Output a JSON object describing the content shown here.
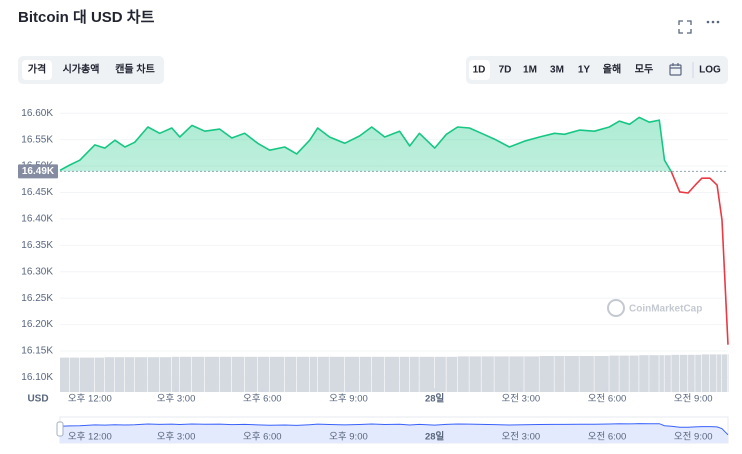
{
  "chart_data": {
    "type": "line",
    "title": "Bitcoin 대 USD 차트",
    "tabs": [
      "가격",
      "시가총액",
      "캔들 차트"
    ],
    "ranges": [
      "1D",
      "7D",
      "1M",
      "3M",
      "1Y",
      "올해",
      "모두"
    ],
    "log_button": "LOG",
    "currency": "USD",
    "watermark": "CoinMarketCap",
    "x": [
      10.96,
      11.3,
      11.65,
      12.17,
      12.52,
      12.87,
      13.22,
      13.56,
      14.02,
      14.43,
      14.85,
      15.13,
      15.55,
      16.0,
      16.52,
      16.94,
      17.39,
      17.84,
      18.26,
      18.78,
      19.2,
      19.65,
      19.93,
      20.34,
      20.87,
      21.39,
      21.81,
      22.26,
      22.78,
      23.13,
      23.47,
      24.0,
      24.41,
      24.8,
      25.21,
      25.63,
      26.08,
      26.6,
      27.12,
      27.65,
      28.17,
      28.52,
      29.04,
      29.56,
      30.08,
      30.43,
      30.78,
      31.12,
      31.47,
      31.82,
      32.0,
      32.24,
      32.53,
      32.82,
      33.07,
      33.3,
      33.58,
      33.83,
      34.0,
      34.21
    ],
    "values": [
      16492,
      16502,
      16511,
      16540,
      16534,
      16549,
      16536,
      16545,
      16574,
      16562,
      16572,
      16555,
      16577,
      16566,
      16570,
      16553,
      16562,
      16543,
      16530,
      16536,
      16523,
      16549,
      16572,
      16555,
      16543,
      16557,
      16574,
      16555,
      16566,
      16538,
      16562,
      16534,
      16560,
      16574,
      16572,
      16562,
      16551,
      16536,
      16547,
      16555,
      16562,
      16560,
      16568,
      16566,
      16574,
      16585,
      16579,
      16592,
      16583,
      16587,
      16511,
      16489,
      16451,
      16449,
      16464,
      16477,
      16477,
      16464,
      16398,
      16162
    ],
    "volume": [
      86,
      86,
      86,
      86,
      87,
      87,
      87,
      87,
      87,
      87,
      88,
      88,
      88,
      88,
      88,
      88,
      88,
      88,
      88,
      88,
      88,
      88,
      88,
      88,
      88,
      88,
      88,
      88,
      88,
      88,
      88,
      88,
      88,
      89,
      89,
      89,
      89,
      89,
      89,
      90,
      90,
      90,
      90,
      90,
      91,
      91,
      91,
      92,
      92,
      92,
      92,
      93,
      93,
      93,
      93,
      94,
      94,
      94,
      94,
      95
    ],
    "volume_lim": [
      0,
      100
    ],
    "up_color": "#16c784",
    "down_color": "#ea3943",
    "baseline": {
      "value": 16490,
      "label": "16.49K"
    },
    "xlim": [
      10.96,
      34.21
    ],
    "xticks": [
      {
        "value": 12,
        "label": "오후 12:00"
      },
      {
        "value": 15,
        "label": "오후 3:00"
      },
      {
        "value": 18,
        "label": "오후 6:00"
      },
      {
        "value": 21,
        "label": "오후 9:00"
      },
      {
        "value": 24,
        "label": "28일"
      },
      {
        "value": 27,
        "label": "오전 3:00"
      },
      {
        "value": 30,
        "label": "오전 6:00"
      },
      {
        "value": 33,
        "label": "오전 9:00"
      }
    ],
    "ylim": [
      16080,
      16625
    ],
    "yticks": [
      {
        "value": 16600,
        "label": "16.60K"
      },
      {
        "value": 16550,
        "label": "16.55K"
      },
      {
        "value": 16500,
        "label": "16.50K"
      },
      {
        "value": 16450,
        "label": "16.45K"
      },
      {
        "value": 16400,
        "label": "16.40K"
      },
      {
        "value": 16350,
        "label": "16.35K"
      },
      {
        "value": 16300,
        "label": "16.30K"
      },
      {
        "value": 16250,
        "label": "16.25K"
      },
      {
        "value": 16200,
        "label": "16.20K"
      },
      {
        "value": 16150,
        "label": "16.15K"
      },
      {
        "value": 16100,
        "label": "16.10K"
      }
    ],
    "grid": true
  }
}
